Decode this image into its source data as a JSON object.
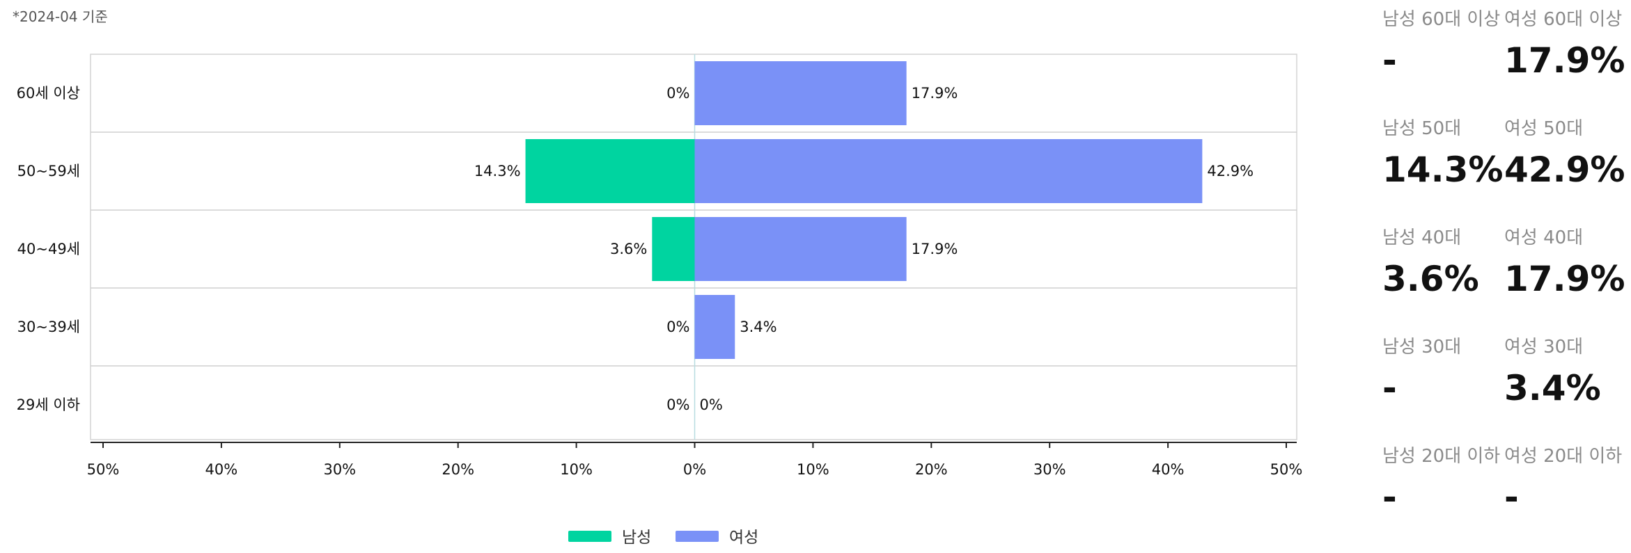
{
  "note": "*2024-04 기준",
  "chart_data": {
    "type": "bar",
    "orientation": "horizontal-diverging",
    "categories": [
      "60세 이상",
      "50~59세",
      "40~49세",
      "30~39세",
      "29세 이하"
    ],
    "series": [
      {
        "name": "남성",
        "color": "#00d4a0",
        "values": [
          0,
          14.3,
          3.6,
          0,
          0
        ],
        "labels": [
          "0%",
          "14.3%",
          "3.6%",
          "0%",
          "0%"
        ]
      },
      {
        "name": "여성",
        "color": "#7a91f7",
        "values": [
          17.9,
          42.9,
          17.9,
          3.4,
          0
        ],
        "labels": [
          "17.9%",
          "42.9%",
          "17.9%",
          "3.4%",
          "0%"
        ]
      }
    ],
    "xlim": [
      -50,
      50
    ],
    "xticks": [
      -50,
      -40,
      -30,
      -20,
      -10,
      0,
      10,
      20,
      30,
      40,
      50
    ],
    "xtick_labels": [
      "50%",
      "40%",
      "30%",
      "20%",
      "10%",
      "0%",
      "10%",
      "20%",
      "30%",
      "40%",
      "50%"
    ],
    "grid": "horizontal row separators",
    "legend": "bottom-center"
  },
  "stats": [
    [
      {
        "label": "남성 60대 이상",
        "value": "-"
      },
      {
        "label": "여성 60대 이상",
        "value": "17.9%"
      }
    ],
    [
      {
        "label": "남성 50대",
        "value": "14.3%"
      },
      {
        "label": "여성 50대",
        "value": "42.9%"
      }
    ],
    [
      {
        "label": "남성 40대",
        "value": "3.6%"
      },
      {
        "label": "여성 40대",
        "value": "17.9%"
      }
    ],
    [
      {
        "label": "남성 30대",
        "value": "-"
      },
      {
        "label": "여성 30대",
        "value": "3.4%"
      }
    ],
    [
      {
        "label": "남성 20대 이하",
        "value": "-"
      },
      {
        "label": "여성 20대 이하",
        "value": "-"
      }
    ]
  ]
}
